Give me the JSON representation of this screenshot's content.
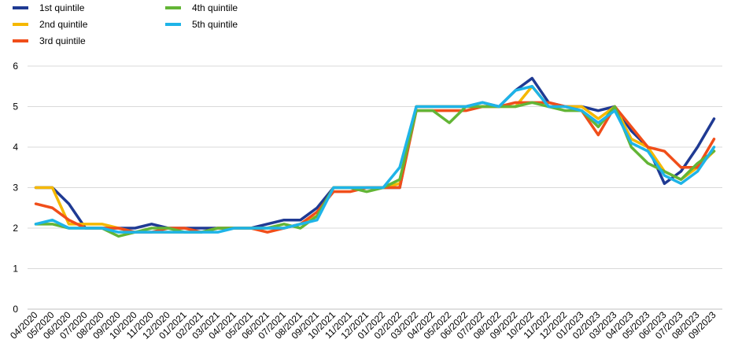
{
  "chart_data": {
    "type": "line",
    "title": "",
    "xlabel": "",
    "ylabel": "",
    "ylim": [
      0,
      6
    ],
    "yticks": [
      0,
      1,
      2,
      3,
      4,
      5,
      6
    ],
    "grid": "horizontal",
    "legend": "top-left",
    "categories": [
      "04/2020",
      "05/2020",
      "06/2020",
      "07/2020",
      "08/2020",
      "09/2020",
      "10/2020",
      "11/2020",
      "12/2020",
      "01/2021",
      "02/2021",
      "03/2021",
      "04/2021",
      "05/2021",
      "06/2021",
      "07/2021",
      "08/2021",
      "09/2021",
      "10/2021",
      "11/2021",
      "12/2021",
      "01/2022",
      "02/2022",
      "03/2022",
      "04/2022",
      "05/2022",
      "06/2022",
      "07/2022",
      "08/2022",
      "09/2022",
      "10/2022",
      "11/2022",
      "12/2022",
      "01/2023",
      "02/2023",
      "03/2023",
      "04/2023",
      "05/2023",
      "06/2023",
      "07/2023",
      "08/2023",
      "09/2023"
    ],
    "series": [
      {
        "name": "1st quintile",
        "color": "#1f3a93",
        "values": [
          3.0,
          3.0,
          2.6,
          2.0,
          2.0,
          2.0,
          2.0,
          2.1,
          2.0,
          2.0,
          2.0,
          2.0,
          2.0,
          2.0,
          2.1,
          2.2,
          2.2,
          2.5,
          3.0,
          3.0,
          3.0,
          3.0,
          3.0,
          5.0,
          5.0,
          5.0,
          5.0,
          5.1,
          5.0,
          5.4,
          5.7,
          5.1,
          5.0,
          5.0,
          4.9,
          5.0,
          4.4,
          4.0,
          3.1,
          3.4,
          4.0,
          4.7
        ]
      },
      {
        "name": "2nd quintile",
        "color": "#f5b800",
        "values": [
          3.0,
          3.0,
          2.1,
          2.1,
          2.1,
          2.0,
          1.9,
          1.9,
          1.9,
          1.9,
          1.9,
          2.0,
          2.0,
          2.0,
          2.0,
          2.0,
          2.1,
          2.3,
          3.0,
          3.0,
          3.0,
          3.0,
          3.1,
          5.0,
          5.0,
          5.0,
          5.0,
          5.0,
          5.0,
          5.0,
          5.5,
          5.0,
          5.0,
          5.0,
          4.7,
          5.0,
          4.2,
          4.0,
          3.4,
          3.2,
          3.5,
          3.9
        ]
      },
      {
        "name": "3rd quintile",
        "color": "#f04e1a",
        "values": [
          2.6,
          2.5,
          2.2,
          2.0,
          2.0,
          2.0,
          1.9,
          1.9,
          2.0,
          2.0,
          1.9,
          2.0,
          2.0,
          2.0,
          1.9,
          2.0,
          2.1,
          2.4,
          2.9,
          2.9,
          3.0,
          3.0,
          3.0,
          4.9,
          4.9,
          4.9,
          4.9,
          5.0,
          5.0,
          5.1,
          5.1,
          5.1,
          5.0,
          4.9,
          4.3,
          5.0,
          4.5,
          4.0,
          3.9,
          3.5,
          3.5,
          4.2
        ]
      },
      {
        "name": "4th quintile",
        "color": "#63b536",
        "values": [
          2.1,
          2.1,
          2.0,
          2.0,
          2.0,
          1.8,
          1.9,
          2.0,
          2.0,
          1.9,
          1.9,
          2.0,
          2.0,
          2.0,
          2.0,
          2.1,
          2.0,
          2.3,
          3.0,
          3.0,
          2.9,
          3.0,
          3.2,
          4.9,
          4.9,
          4.6,
          5.0,
          5.0,
          5.0,
          5.0,
          5.1,
          5.0,
          4.9,
          4.9,
          4.5,
          5.0,
          4.0,
          3.6,
          3.4,
          3.2,
          3.6,
          3.9
        ]
      },
      {
        "name": "5th quintile",
        "color": "#1eb4e8",
        "values": [
          2.1,
          2.2,
          2.0,
          2.0,
          2.0,
          1.9,
          1.9,
          1.9,
          1.9,
          1.9,
          1.9,
          1.9,
          2.0,
          2.0,
          2.0,
          2.0,
          2.1,
          2.2,
          3.0,
          3.0,
          3.0,
          3.0,
          3.5,
          5.0,
          5.0,
          5.0,
          5.0,
          5.1,
          5.0,
          5.4,
          5.5,
          5.0,
          5.0,
          4.9,
          4.6,
          4.9,
          4.1,
          3.9,
          3.3,
          3.1,
          3.4,
          4.0
        ]
      }
    ]
  }
}
